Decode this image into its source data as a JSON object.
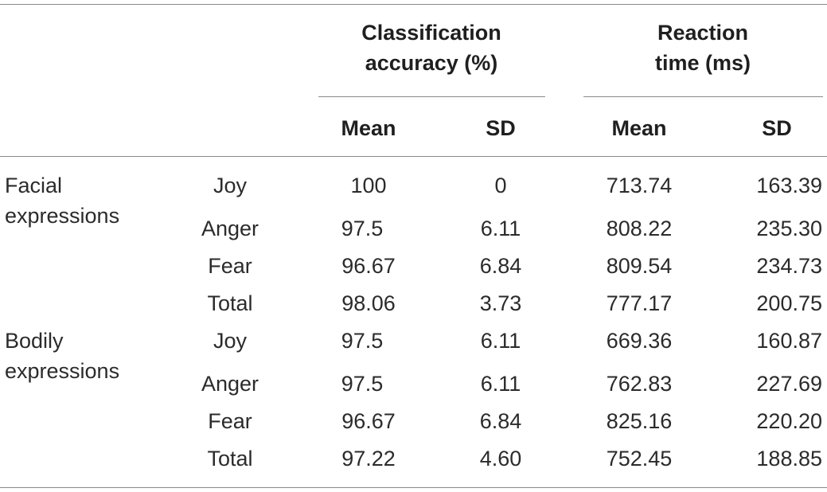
{
  "table": {
    "header": {
      "group1_line1": "Classification",
      "group1_line2": "accuracy (%)",
      "group2_line1": "Reaction",
      "group2_line2": "time (ms)",
      "mean1": "Mean",
      "sd1": "SD",
      "mean2": "Mean",
      "sd2": "SD"
    },
    "groups": [
      {
        "label_line1": "Facial",
        "label_line2": "expressions",
        "rows": [
          {
            "emotion": "Joy",
            "acc_mean": "100",
            "acc_sd": "0",
            "rt_mean": "713.74",
            "rt_sd": "163.39"
          },
          {
            "emotion": "Anger",
            "acc_mean": "97.5",
            "acc_sd": "6.11",
            "rt_mean": "808.22",
            "rt_sd": "235.30"
          },
          {
            "emotion": "Fear",
            "acc_mean": "96.67",
            "acc_sd": "6.84",
            "rt_mean": "809.54",
            "rt_sd": "234.73"
          },
          {
            "emotion": "Total",
            "acc_mean": "98.06",
            "acc_sd": "3.73",
            "rt_mean": "777.17",
            "rt_sd": "200.75"
          }
        ]
      },
      {
        "label_line1": "Bodily",
        "label_line2": "expressions",
        "rows": [
          {
            "emotion": "Joy",
            "acc_mean": "97.5",
            "acc_sd": "6.11",
            "rt_mean": "669.36",
            "rt_sd": "160.87"
          },
          {
            "emotion": "Anger",
            "acc_mean": "97.5",
            "acc_sd": "6.11",
            "rt_mean": "762.83",
            "rt_sd": "227.69"
          },
          {
            "emotion": "Fear",
            "acc_mean": "96.67",
            "acc_sd": "6.84",
            "rt_mean": "825.16",
            "rt_sd": "220.20"
          },
          {
            "emotion": "Total",
            "acc_mean": "97.22",
            "acc_sd": "4.60",
            "rt_mean": "752.45",
            "rt_sd": "188.85"
          }
        ]
      }
    ]
  }
}
